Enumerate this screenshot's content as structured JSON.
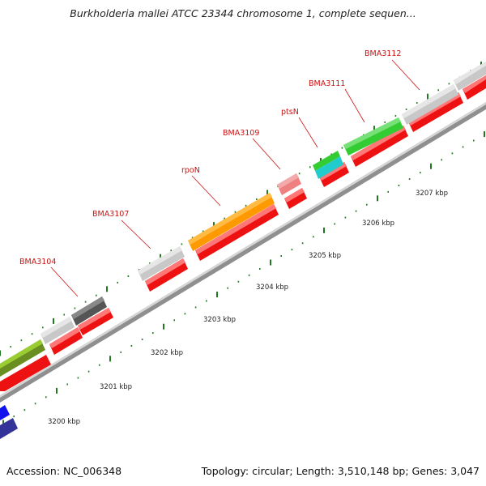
{
  "title": "Burkholderia mallei ATCC 23344 chromosome 1, complete sequen...",
  "footer": {
    "accession": "Accession: NC_006348",
    "summary": "Topology: circular; Length: 3,510,148 bp; Genes: 3,047"
  },
  "tick_labels": [
    "3200 kbp",
    "3201 kbp",
    "3202 kbp",
    "3203 kbp",
    "3204 kbp",
    "3205 kbp",
    "3206 kbp",
    "3207 kbp"
  ],
  "gene_labels": [
    "BMA3104",
    "BMA3107",
    "rpoN",
    "BMA3109",
    "ptsN",
    "BMA3111",
    "BMA3112"
  ],
  "colors": {
    "cds": "#ee1111",
    "backbone": "#9a9a9a",
    "tick": "#227722",
    "label": "#cc1111",
    "olive": "#6b8e23",
    "gray": "#c8c8c8",
    "darkgray": "#555555",
    "orange": "#ff9900",
    "pink": "#ee8080",
    "green": "#33cc33",
    "cyan": "#22cccc",
    "blue": "#1111ee",
    "navy": "#333399"
  }
}
